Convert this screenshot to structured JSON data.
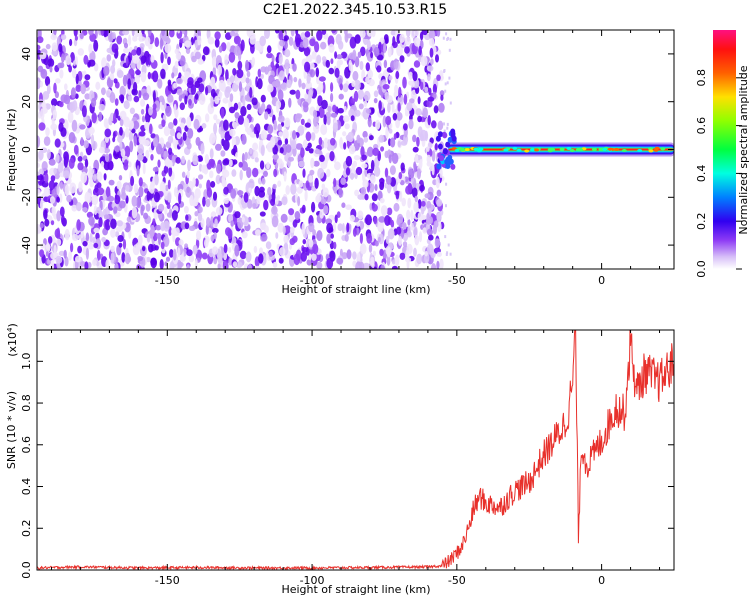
{
  "figure": {
    "title": "C2E1.2022.345.10.53.R15"
  },
  "colors": {
    "background": "#ffffff",
    "snr_line": "#e8302b",
    "noise_purple": "#7a20f0",
    "colormap": [
      "#ffffff",
      "#c9a6f5",
      "#8e3cf5",
      "#5a00f0",
      "#2040ff",
      "#00d8ff",
      "#00ff60",
      "#b0ff00",
      "#ffe000",
      "#ff6000",
      "#ff2020",
      "#ff2080"
    ]
  },
  "chart_data": [
    {
      "type": "heatmap",
      "xlabel": "Height of straight line (km)",
      "ylabel": "Frequency (Hz)",
      "xlim": [
        -195,
        25
      ],
      "ylim": [
        -50,
        50
      ],
      "xticks": [
        -150,
        -100,
        -50,
        0
      ],
      "yticks": [
        -40,
        -20,
        0,
        20,
        40
      ],
      "regions": [
        {
          "x_range": [
            -195,
            -55
          ],
          "description_value": "broadband noise",
          "amplitude_range": [
            0.0,
            0.25
          ]
        },
        {
          "x_range": [
            -55,
            25
          ],
          "frequency_hz": 0,
          "amplitude_range": [
            0.3,
            1.0
          ]
        }
      ],
      "colorbar": {
        "label": "Normalized spectral amplitude",
        "range": [
          0.0,
          1.0
        ],
        "ticks": [
          0.0,
          0.2,
          0.4,
          0.6,
          0.8
        ]
      }
    },
    {
      "type": "line",
      "xlabel": "Height of straight line (km)",
      "ylabel": "SNR (10 * v/v)",
      "scale_label": "(x10",
      "scale_exponent": "4",
      "scale_close": ")",
      "xlim": [
        -195,
        25
      ],
      "ylim": [
        0.0,
        1.15
      ],
      "xticks": [
        -150,
        -100,
        -50,
        0
      ],
      "yticks": [
        0.0,
        0.2,
        0.4,
        0.6,
        0.8,
        1.0
      ],
      "series": [
        {
          "x": [
            -195,
            -180,
            -160,
            -140,
            -120,
            -100,
            -80,
            -60,
            -55,
            -52,
            -50,
            -48,
            -46,
            -44,
            -42,
            -40,
            -35,
            -30,
            -25,
            -20,
            -15,
            -12,
            -10,
            -9,
            -8,
            -7,
            -5,
            0,
            5,
            8,
            10,
            12,
            15,
            20,
            25
          ],
          "y": [
            0.01,
            0.015,
            0.01,
            0.012,
            0.01,
            0.01,
            0.012,
            0.015,
            0.02,
            0.05,
            0.08,
            0.12,
            0.2,
            0.3,
            0.35,
            0.32,
            0.3,
            0.38,
            0.42,
            0.55,
            0.65,
            0.72,
            0.9,
            1.15,
            0.15,
            0.6,
            0.5,
            0.62,
            0.78,
            0.75,
            1.1,
            0.85,
            0.95,
            0.9,
            1.0
          ]
        }
      ]
    }
  ]
}
